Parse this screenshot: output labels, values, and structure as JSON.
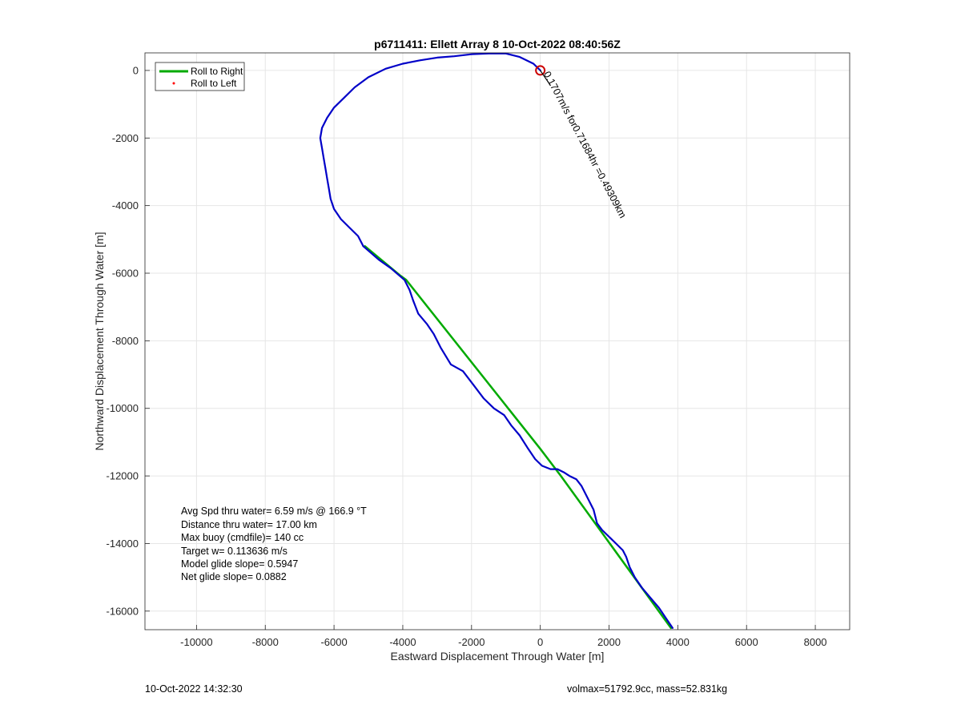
{
  "chart_data": {
    "type": "line",
    "title": "p6711411: Ellett Array 8 10-Oct-2022 08:40:56Z",
    "xlabel": "Eastward Displacement Through Water [m]",
    "ylabel": "Northward Displacement Through Water [m]",
    "xlim": [
      -11500,
      9000
    ],
    "ylim": [
      -16550,
      520
    ],
    "xticks": [
      -10000,
      -8000,
      -6000,
      -4000,
      -2000,
      0,
      2000,
      4000,
      6000,
      8000
    ],
    "yticks": [
      0,
      -2000,
      -4000,
      -6000,
      -8000,
      -10000,
      -12000,
      -14000,
      -16000
    ],
    "grid": true,
    "legend": {
      "placement": "top-left",
      "entries": [
        {
          "label": "Roll to Right",
          "color": "#00aa00",
          "style": "line"
        },
        {
          "label": "Roll to Left",
          "color": "#ff0000",
          "style": "dot"
        }
      ]
    },
    "series": [
      {
        "name": "Roll to Right",
        "color": "#00aa00",
        "x": [
          -5100,
          -4100,
          -3900,
          0,
          600,
          3800
        ],
        "y": [
          -5200,
          -6050,
          -6200,
          -11200,
          -12000,
          -16500
        ]
      },
      {
        "color": "#0000c8",
        "x": [
          -5150,
          -4700,
          -4350,
          -3950,
          -3800,
          -3700,
          -3550,
          -3300,
          -3100,
          -2900,
          -2600,
          -2250,
          -1950,
          -1650,
          -1350,
          -1050,
          -850,
          -600,
          -350,
          -150,
          50,
          300,
          500,
          700,
          850,
          1050,
          1200,
          1400,
          1550,
          1650,
          1800,
          2000,
          2200,
          2400,
          2500,
          2600,
          2750,
          2950,
          3200,
          3450,
          3650,
          3850
        ],
        "y": [
          -5200,
          -5600,
          -5850,
          -6200,
          -6500,
          -6800,
          -7200,
          -7500,
          -7800,
          -8200,
          -8700,
          -8900,
          -9300,
          -9700,
          -10000,
          -10200,
          -10500,
          -10800,
          -11200,
          -11500,
          -11700,
          -11800,
          -11800,
          -11900,
          -12000,
          -12100,
          -12300,
          -12700,
          -13000,
          -13400,
          -13600,
          -13800,
          -14000,
          -14200,
          -14400,
          -14700,
          -15000,
          -15300,
          -15600,
          -15900,
          -16200,
          -16500
        ]
      },
      {
        "color": "#0000c8",
        "x": [
          0,
          -200,
          -600,
          -1000,
          -1500,
          -2000,
          -2500,
          -3000,
          -3500,
          -4000,
          -4500,
          -5000,
          -5400,
          -5700,
          -6000,
          -6200,
          -6350,
          -6400,
          -6350,
          -6300,
          -6250,
          -6200,
          -6150,
          -6100,
          -6000,
          -5800,
          -5550,
          -5300,
          -5150
        ],
        "y": [
          0,
          200,
          400,
          500,
          500,
          480,
          420,
          380,
          300,
          200,
          50,
          -200,
          -500,
          -800,
          -1100,
          -1400,
          -1700,
          -2000,
          -2300,
          -2600,
          -2900,
          -3200,
          -3500,
          -3800,
          -4100,
          -4400,
          -4650,
          -4900,
          -5200
        ]
      }
    ],
    "marker": {
      "label": "start",
      "x": 0,
      "y": 0,
      "color": "#cc0000"
    },
    "annotation": {
      "text": "0.1707m/s for0.71684hr =0.49309km",
      "x": 0,
      "y": 0,
      "angle_deg": 62
    }
  },
  "stats": [
    "Avg Spd thru water=  6.59 m/s @ 166.9 °T",
    "Distance thru water= 17.00 km",
    "Max buoy (cmdfile)= 140 cc",
    "Target w= 0.113636 m/s",
    "Model glide slope= 0.5947",
    "Net glide slope= 0.0882"
  ],
  "footer": {
    "left": "10-Oct-2022 14:32:30",
    "right": "volmax=51792.9cc, mass=52.831kg"
  }
}
